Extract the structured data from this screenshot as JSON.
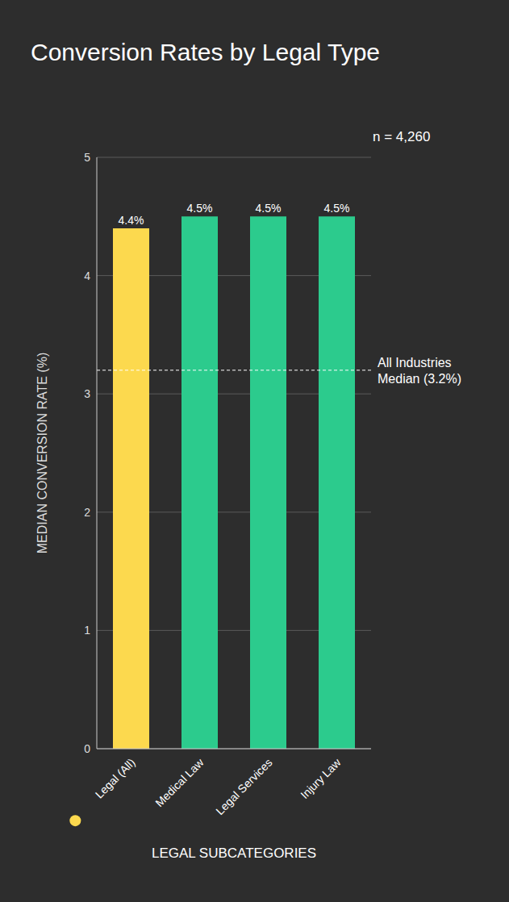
{
  "chart_data": {
    "type": "bar",
    "title": "Conversion Rates by Legal Type",
    "note": "n = 4,260",
    "categories": [
      "Legal (All)",
      "Medical Law",
      "Legal Services",
      "Injury Law"
    ],
    "values": [
      4.4,
      4.5,
      4.5,
      4.5
    ],
    "value_labels": [
      "4.4%",
      "4.5%",
      "4.5%",
      "4.5%"
    ],
    "colors": [
      "#fcd94e",
      "#2ccb8d",
      "#2ccb8d",
      "#2ccb8d"
    ],
    "x_label": "LEGAL SUBCATEGORIES",
    "y_label": "MEDIAN CONVERSION RATE (%)",
    "ylim": [
      0,
      5
    ],
    "yticks": [
      0,
      1,
      2,
      3,
      4,
      5
    ],
    "grid": true,
    "data_labels": true,
    "reference_line": {
      "y": 3.2,
      "label": "All Industries Median (3.2%)"
    }
  }
}
